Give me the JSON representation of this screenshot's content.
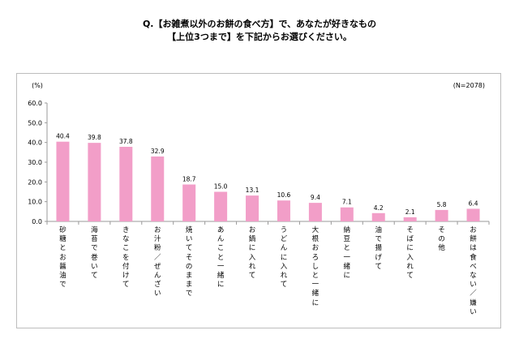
{
  "question": {
    "line1": "Q.【お雑煮以外のお餅の食べ方】で、あなたが好きなもの",
    "line2": "【上位3つまで】を下記からお選びください。"
  },
  "chart_data": {
    "type": "bar",
    "title": "",
    "ylabel": "(%)",
    "note": "(N=2078)",
    "ylim": [
      0,
      60
    ],
    "yticks": [
      "0.0",
      "10.0",
      "20.0",
      "30.0",
      "40.0",
      "50.0",
      "60.0"
    ],
    "categories": [
      "砂糖とお醤油で",
      "海苔で巻いて",
      "きなこを付けて",
      "お汁粉／ぜんざい",
      "焼いてそのままで",
      "あんこと一緒に",
      "お鍋に入れて",
      "うどんに入れて",
      "大根おろしと一緒に",
      "納豆と一緒に",
      "油で揚げて",
      "そばに入れて",
      "その他",
      "お餅は食べない／嫌い"
    ],
    "values": [
      40.4,
      39.8,
      37.8,
      32.9,
      18.7,
      15.0,
      13.1,
      10.6,
      9.4,
      7.1,
      4.2,
      2.1,
      5.8,
      6.4
    ],
    "value_labels": [
      "40.4",
      "39.8",
      "37.8",
      "32.9",
      "18.7",
      "15.0",
      "13.1",
      "10.6",
      "9.4",
      "7.1",
      "4.2",
      "2.1",
      "5.8",
      "6.4"
    ],
    "bar_color": "#f29ec8",
    "axis_color": "#999999",
    "grid": false
  }
}
